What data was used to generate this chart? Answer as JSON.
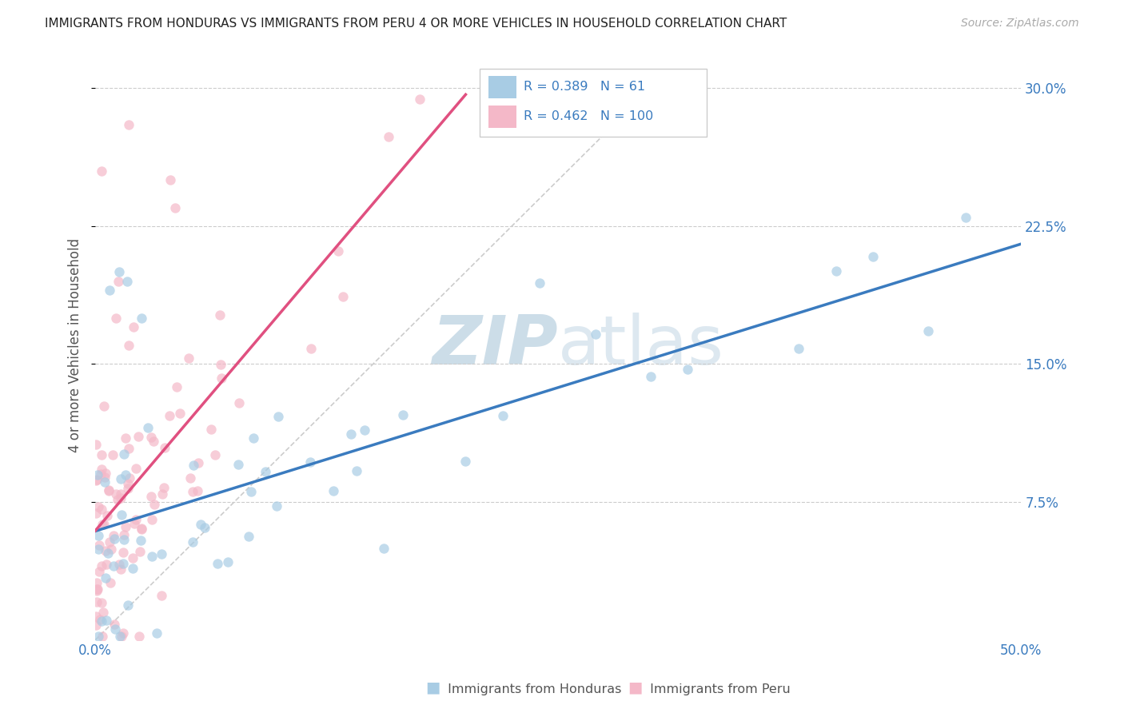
{
  "title": "IMMIGRANTS FROM HONDURAS VS IMMIGRANTS FROM PERU 4 OR MORE VEHICLES IN HOUSEHOLD CORRELATION CHART",
  "source": "Source: ZipAtlas.com",
  "ylabel": "4 or more Vehicles in Household",
  "xlim": [
    0.0,
    0.5
  ],
  "ylim": [
    0.0,
    0.32
  ],
  "legend_R_Honduras": "0.389",
  "legend_N_Honduras": "61",
  "legend_R_Peru": "0.462",
  "legend_N_Peru": "100",
  "color_honduras": "#a8cce4",
  "color_peru": "#f4b8c8",
  "color_honduras_line": "#3a7bbf",
  "color_peru_line": "#e05080",
  "color_legend_text_blue": "#3a7bbf",
  "color_legend_text_num": "#3a7bbf",
  "watermark_color": "#ccdde8",
  "background_color": "#ffffff",
  "grid_color": "#cccccc"
}
